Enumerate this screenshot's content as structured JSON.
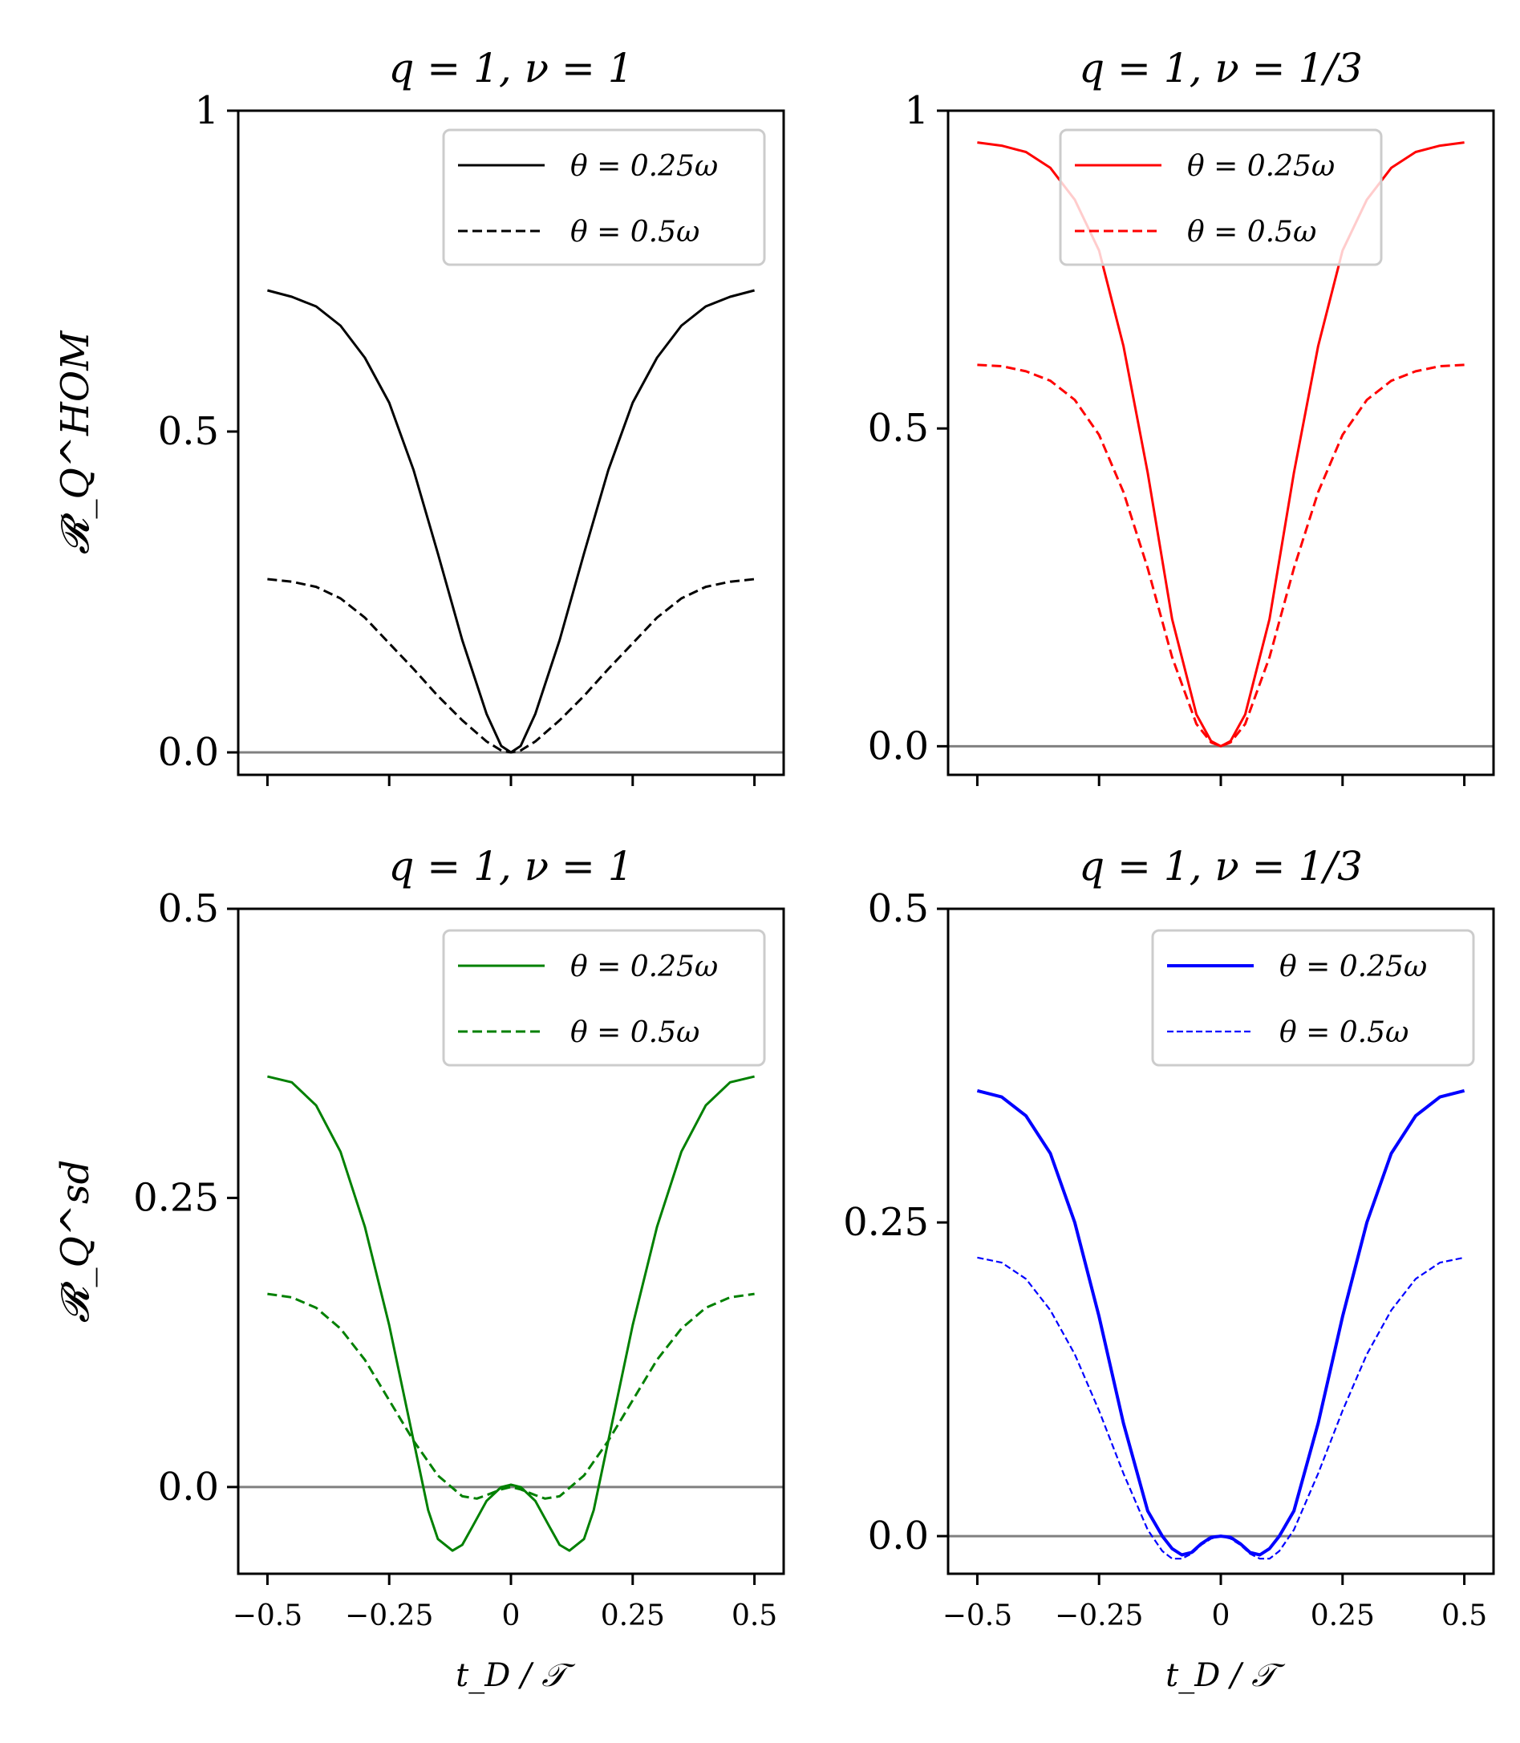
{
  "chart_data": [
    {
      "type": "line",
      "panel": "top-left",
      "title": "q = 1, ν = 1",
      "ylabel": "𝓡_Q^HOM",
      "xlabel": "",
      "xlim": [
        -0.56,
        0.56
      ],
      "ylim": [
        -0.035,
        1.0
      ],
      "xticks": [
        -0.5,
        -0.25,
        0,
        0.25,
        0.5
      ],
      "xtick_labels": [],
      "yticks": [
        0,
        0.5,
        1
      ],
      "ytick_labels": [
        "0.0",
        "0.5",
        "1"
      ],
      "legend_position": "upper right",
      "series": [
        {
          "name": "θ = 0.25ω",
          "color": "#000000",
          "dash": "solid",
          "width": 3,
          "x": [
            -0.5,
            -0.45,
            -0.4,
            -0.35,
            -0.3,
            -0.25,
            -0.2,
            -0.15,
            -0.1,
            -0.05,
            -0.02,
            0,
            0.02,
            0.05,
            0.1,
            0.15,
            0.2,
            0.25,
            0.3,
            0.35,
            0.4,
            0.45,
            0.5
          ],
          "y": [
            0.72,
            0.71,
            0.695,
            0.665,
            0.615,
            0.545,
            0.44,
            0.31,
            0.175,
            0.06,
            0.01,
            0,
            0.01,
            0.06,
            0.175,
            0.31,
            0.44,
            0.545,
            0.615,
            0.665,
            0.695,
            0.71,
            0.72
          ]
        },
        {
          "name": "θ = 0.5ω",
          "color": "#000000",
          "dash": "dashed",
          "width": 3,
          "x": [
            -0.5,
            -0.45,
            -0.4,
            -0.35,
            -0.3,
            -0.25,
            -0.2,
            -0.15,
            -0.1,
            -0.05,
            -0.02,
            0,
            0.02,
            0.05,
            0.1,
            0.15,
            0.2,
            0.25,
            0.3,
            0.35,
            0.4,
            0.45,
            0.5
          ],
          "y": [
            0.27,
            0.266,
            0.258,
            0.24,
            0.21,
            0.17,
            0.13,
            0.088,
            0.05,
            0.017,
            0.003,
            0,
            0.003,
            0.017,
            0.05,
            0.088,
            0.13,
            0.17,
            0.21,
            0.24,
            0.258,
            0.266,
            0.27
          ]
        }
      ]
    },
    {
      "type": "line",
      "panel": "top-right",
      "title": "q = 1, ν = 1/3",
      "ylabel": "",
      "xlabel": "",
      "xlim": [
        -0.56,
        0.56
      ],
      "ylim": [
        -0.045,
        1.0
      ],
      "xticks": [
        -0.5,
        -0.25,
        0,
        0.25,
        0.5
      ],
      "xtick_labels": [],
      "yticks": [
        0,
        0.5,
        1
      ],
      "ytick_labels": [
        "0.0",
        "0.5",
        "1"
      ],
      "legend_position": "upper center",
      "series": [
        {
          "name": "θ = 0.25ω",
          "color": "#ff0000",
          "dash": "solid",
          "width": 3,
          "x": [
            -0.5,
            -0.45,
            -0.4,
            -0.35,
            -0.3,
            -0.25,
            -0.2,
            -0.15,
            -0.1,
            -0.05,
            -0.02,
            0,
            0.02,
            0.05,
            0.1,
            0.15,
            0.2,
            0.25,
            0.3,
            0.35,
            0.4,
            0.45,
            0.5
          ],
          "y": [
            0.95,
            0.945,
            0.935,
            0.91,
            0.86,
            0.78,
            0.63,
            0.43,
            0.2,
            0.05,
            0.008,
            0,
            0.008,
            0.05,
            0.2,
            0.43,
            0.63,
            0.78,
            0.86,
            0.91,
            0.935,
            0.945,
            0.95
          ]
        },
        {
          "name": "θ = 0.5ω",
          "color": "#ff0000",
          "dash": "dashed",
          "width": 3,
          "x": [
            -0.5,
            -0.45,
            -0.4,
            -0.35,
            -0.3,
            -0.25,
            -0.2,
            -0.15,
            -0.1,
            -0.05,
            -0.02,
            0,
            0.02,
            0.05,
            0.1,
            0.15,
            0.2,
            0.25,
            0.3,
            0.35,
            0.4,
            0.45,
            0.5
          ],
          "y": [
            0.6,
            0.598,
            0.59,
            0.575,
            0.545,
            0.49,
            0.4,
            0.28,
            0.14,
            0.035,
            0.006,
            0,
            0.006,
            0.035,
            0.14,
            0.28,
            0.4,
            0.49,
            0.545,
            0.575,
            0.59,
            0.598,
            0.6
          ]
        }
      ]
    },
    {
      "type": "line",
      "panel": "bottom-left",
      "title": "q = 1, ν = 1",
      "ylabel": "𝓡_Q^sd",
      "xlabel": "t_D / 𝒯",
      "xlim": [
        -0.56,
        0.56
      ],
      "ylim": [
        -0.075,
        0.5
      ],
      "xticks": [
        -0.5,
        -0.25,
        0,
        0.25,
        0.5
      ],
      "xtick_labels": [
        "−0.5",
        "−0.25",
        "0",
        "0.25",
        "0.5"
      ],
      "yticks": [
        0,
        0.25,
        0.5
      ],
      "ytick_labels": [
        "0.0",
        "0.25",
        "0.5"
      ],
      "legend_position": "upper right",
      "series": [
        {
          "name": "θ = 0.25ω",
          "color": "#008000",
          "dash": "solid",
          "width": 3,
          "x": [
            -0.5,
            -0.45,
            -0.4,
            -0.35,
            -0.3,
            -0.25,
            -0.2,
            -0.17,
            -0.15,
            -0.12,
            -0.1,
            -0.08,
            -0.05,
            -0.02,
            0,
            0.02,
            0.05,
            0.08,
            0.1,
            0.12,
            0.15,
            0.17,
            0.2,
            0.25,
            0.3,
            0.35,
            0.4,
            0.45,
            0.5
          ],
          "y": [
            0.355,
            0.35,
            0.33,
            0.29,
            0.225,
            0.14,
            0.04,
            -0.02,
            -0.045,
            -0.055,
            -0.05,
            -0.035,
            -0.012,
            0,
            0.002,
            0,
            -0.012,
            -0.035,
            -0.05,
            -0.055,
            -0.045,
            -0.02,
            0.04,
            0.14,
            0.225,
            0.29,
            0.33,
            0.35,
            0.355
          ]
        },
        {
          "name": "θ = 0.5ω",
          "color": "#008000",
          "dash": "dashed",
          "width": 3,
          "x": [
            -0.5,
            -0.45,
            -0.4,
            -0.35,
            -0.3,
            -0.25,
            -0.2,
            -0.15,
            -0.1,
            -0.07,
            -0.05,
            -0.02,
            0,
            0.02,
            0.05,
            0.07,
            0.1,
            0.15,
            0.2,
            0.25,
            0.3,
            0.35,
            0.4,
            0.45,
            0.5
          ],
          "y": [
            0.167,
            0.164,
            0.155,
            0.137,
            0.11,
            0.075,
            0.04,
            0.01,
            -0.008,
            -0.01,
            -0.007,
            -0.002,
            0,
            -0.002,
            -0.007,
            -0.01,
            -0.008,
            0.01,
            0.04,
            0.075,
            0.11,
            0.137,
            0.155,
            0.164,
            0.167
          ]
        }
      ]
    },
    {
      "type": "line",
      "panel": "bottom-right",
      "title": "q = 1, ν = 1/3",
      "ylabel": "",
      "xlabel": "t_D / 𝒯",
      "xlim": [
        -0.56,
        0.56
      ],
      "ylim": [
        -0.03,
        0.5
      ],
      "xticks": [
        -0.5,
        -0.25,
        0,
        0.25,
        0.5
      ],
      "xtick_labels": [
        "−0.5",
        "−0.25",
        "0",
        "0.25",
        "0.5"
      ],
      "yticks": [
        0,
        0.25,
        0.5
      ],
      "ytick_labels": [
        "0.0",
        "0.25",
        "0.5"
      ],
      "legend_position": "upper right",
      "series": [
        {
          "name": "θ = 0.25ω",
          "color": "#0000ff",
          "dash": "solid",
          "width": 4,
          "x": [
            -0.5,
            -0.45,
            -0.4,
            -0.35,
            -0.3,
            -0.25,
            -0.2,
            -0.15,
            -0.12,
            -0.1,
            -0.08,
            -0.06,
            -0.04,
            -0.02,
            0,
            0.02,
            0.04,
            0.06,
            0.08,
            0.1,
            0.12,
            0.15,
            0.2,
            0.25,
            0.3,
            0.35,
            0.4,
            0.45,
            0.5
          ],
          "y": [
            0.355,
            0.35,
            0.335,
            0.305,
            0.25,
            0.175,
            0.09,
            0.02,
            0.0,
            -0.01,
            -0.015,
            -0.013,
            -0.006,
            -0.001,
            0.0,
            -0.001,
            -0.006,
            -0.013,
            -0.015,
            -0.01,
            0.0,
            0.02,
            0.09,
            0.175,
            0.25,
            0.305,
            0.335,
            0.35,
            0.355
          ]
        },
        {
          "name": "θ = 0.5ω",
          "color": "#0000ff",
          "dash": "dashed",
          "width": 2.2,
          "x": [
            -0.5,
            -0.45,
            -0.4,
            -0.35,
            -0.3,
            -0.25,
            -0.2,
            -0.15,
            -0.12,
            -0.1,
            -0.08,
            -0.06,
            -0.04,
            -0.02,
            0,
            0.02,
            0.04,
            0.06,
            0.08,
            0.1,
            0.12,
            0.15,
            0.2,
            0.25,
            0.3,
            0.35,
            0.4,
            0.45,
            0.5
          ],
          "y": [
            0.222,
            0.218,
            0.205,
            0.18,
            0.145,
            0.1,
            0.05,
            0.005,
            -0.012,
            -0.018,
            -0.018,
            -0.014,
            -0.007,
            -0.002,
            0.0,
            -0.002,
            -0.007,
            -0.014,
            -0.018,
            -0.018,
            -0.012,
            0.005,
            0.05,
            0.1,
            0.145,
            0.18,
            0.205,
            0.218,
            0.222
          ]
        }
      ]
    }
  ]
}
